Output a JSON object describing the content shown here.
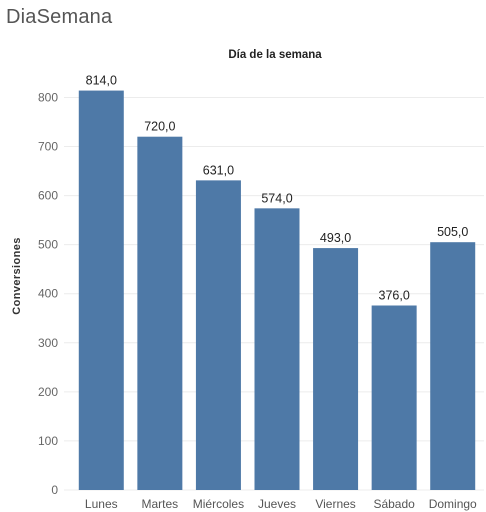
{
  "sheet_title": "DiaSemana",
  "chart_data": {
    "type": "bar",
    "title": "Día de la semana",
    "xlabel": "",
    "ylabel": "Conversiones",
    "categories": [
      "Lunes",
      "Martes",
      "Miércoles",
      "Jueves",
      "Viernes",
      "Sábado",
      "Domingo"
    ],
    "values": [
      814,
      720,
      631,
      574,
      493,
      376,
      505
    ],
    "data_labels": [
      "814,0",
      "720,0",
      "631,0",
      "574,0",
      "493,0",
      "376,0",
      "505,0"
    ],
    "yticks": [
      0,
      100,
      200,
      300,
      400,
      500,
      600,
      700,
      800
    ],
    "ylim": [
      0,
      860
    ],
    "grid": true,
    "bar_color": "#4e79a7"
  }
}
